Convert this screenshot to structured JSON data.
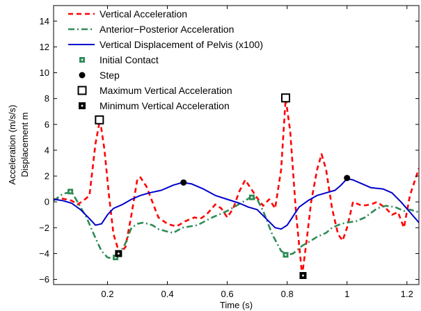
{
  "chart_data": {
    "type": "line",
    "xlabel": "Time (s)",
    "ylabel_lines": [
      "Acceleration (m/s/s)",
      "Displacement m"
    ],
    "xlim": [
      0.02,
      1.24
    ],
    "ylim": [
      -6.4,
      15.2
    ],
    "x_ticks": [
      0.2,
      0.4,
      0.6,
      0.8,
      1,
      1.2
    ],
    "x_tick_labels": [
      "0.2",
      "0.4",
      "0.6",
      "0.8",
      "1",
      "1.2"
    ],
    "y_ticks": [
      -6,
      -4,
      -2,
      0,
      2,
      4,
      6,
      8,
      10,
      12,
      14
    ],
    "y_tick_labels": [
      "−6",
      "−4",
      "−2",
      "0",
      "2",
      "4",
      "6",
      "8",
      "10",
      "12",
      "14"
    ],
    "grid": false,
    "legend_position": "top-left",
    "series": [
      {
        "name": "Vertical Acceleration",
        "color": "#ff0000",
        "style": "dashed",
        "points": [
          [
            0.02,
            0.2
          ],
          [
            0.05,
            0.25
          ],
          [
            0.08,
            0.1
          ],
          [
            0.1,
            -0.2
          ],
          [
            0.12,
            0.1
          ],
          [
            0.14,
            0.5
          ],
          [
            0.16,
            4.5
          ],
          [
            0.175,
            6.4
          ],
          [
            0.19,
            4.0
          ],
          [
            0.205,
            0.5
          ],
          [
            0.22,
            -2.5
          ],
          [
            0.24,
            -4.0
          ],
          [
            0.26,
            -3.5
          ],
          [
            0.28,
            -1.0
          ],
          [
            0.3,
            1.8
          ],
          [
            0.31,
            1.9
          ],
          [
            0.33,
            1.2
          ],
          [
            0.35,
            0.0
          ],
          [
            0.37,
            -1.2
          ],
          [
            0.4,
            -1.7
          ],
          [
            0.43,
            -1.9
          ],
          [
            0.46,
            -1.5
          ],
          [
            0.49,
            -1.2
          ],
          [
            0.51,
            -1.3
          ],
          [
            0.53,
            -1.0
          ],
          [
            0.56,
            -0.2
          ],
          [
            0.58,
            -0.5
          ],
          [
            0.6,
            -1.2
          ],
          [
            0.62,
            -0.5
          ],
          [
            0.64,
            0.8
          ],
          [
            0.66,
            1.7
          ],
          [
            0.68,
            1.0
          ],
          [
            0.7,
            0.3
          ],
          [
            0.72,
            -0.3
          ],
          [
            0.74,
            0.2
          ],
          [
            0.76,
            -0.5
          ],
          [
            0.78,
            2.5
          ],
          [
            0.795,
            8.0
          ],
          [
            0.81,
            5.5
          ],
          [
            0.83,
            -1.0
          ],
          [
            0.85,
            -5.7
          ],
          [
            0.865,
            -3.0
          ],
          [
            0.88,
            0.0
          ],
          [
            0.9,
            2.5
          ],
          [
            0.915,
            3.7
          ],
          [
            0.93,
            2.5
          ],
          [
            0.95,
            -0.5
          ],
          [
            0.97,
            -2.5
          ],
          [
            0.985,
            -3.0
          ],
          [
            1.0,
            -2.0
          ],
          [
            1.02,
            0.0
          ],
          [
            1.05,
            -0.3
          ],
          [
            1.08,
            -0.2
          ],
          [
            1.1,
            0.0
          ],
          [
            1.13,
            -0.5
          ],
          [
            1.15,
            -1.0
          ],
          [
            1.17,
            -0.8
          ],
          [
            1.19,
            -2.0
          ],
          [
            1.21,
            0.5
          ],
          [
            1.24,
            2.6
          ]
        ]
      },
      {
        "name": "Anterior−Posterior Acceleration",
        "color": "#2e8b57",
        "style": "dashdot",
        "points": [
          [
            0.02,
            0.1
          ],
          [
            0.05,
            0.6
          ],
          [
            0.08,
            0.8
          ],
          [
            0.1,
            0.0
          ],
          [
            0.13,
            -1.2
          ],
          [
            0.16,
            -2.8
          ],
          [
            0.18,
            -3.8
          ],
          [
            0.2,
            -4.3
          ],
          [
            0.22,
            -4.4
          ],
          [
            0.24,
            -4.0
          ],
          [
            0.26,
            -3.2
          ],
          [
            0.28,
            -2.0
          ],
          [
            0.3,
            -1.7
          ],
          [
            0.32,
            -1.6
          ],
          [
            0.35,
            -1.8
          ],
          [
            0.37,
            -2.1
          ],
          [
            0.4,
            -2.3
          ],
          [
            0.42,
            -2.4
          ],
          [
            0.45,
            -2.0
          ],
          [
            0.5,
            -1.8
          ],
          [
            0.55,
            -1.2
          ],
          [
            0.6,
            -0.7
          ],
          [
            0.63,
            -0.3
          ],
          [
            0.66,
            0.1
          ],
          [
            0.68,
            0.4
          ],
          [
            0.7,
            0.2
          ],
          [
            0.72,
            -0.7
          ],
          [
            0.75,
            -2.5
          ],
          [
            0.78,
            -3.8
          ],
          [
            0.8,
            -4.1
          ],
          [
            0.82,
            -4.0
          ],
          [
            0.85,
            -3.4
          ],
          [
            0.88,
            -3.0
          ],
          [
            0.9,
            -2.7
          ],
          [
            0.93,
            -2.4
          ],
          [
            0.95,
            -2.0
          ],
          [
            0.98,
            -1.7
          ],
          [
            1.0,
            -1.6
          ],
          [
            1.03,
            -1.5
          ],
          [
            1.06,
            -1.2
          ],
          [
            1.1,
            -0.5
          ],
          [
            1.13,
            -0.3
          ],
          [
            1.16,
            -0.4
          ],
          [
            1.19,
            -0.7
          ],
          [
            1.21,
            -0.6
          ],
          [
            1.24,
            -0.8
          ]
        ]
      },
      {
        "name": "Vertical Displacement of Pelvis (x100)",
        "color": "#0000cd",
        "style": "solid",
        "points": [
          [
            0.02,
            0.2
          ],
          [
            0.05,
            0.1
          ],
          [
            0.08,
            -0.1
          ],
          [
            0.11,
            -0.6
          ],
          [
            0.14,
            -1.3
          ],
          [
            0.16,
            -1.8
          ],
          [
            0.18,
            -1.7
          ],
          [
            0.2,
            -1.0
          ],
          [
            0.22,
            -0.5
          ],
          [
            0.25,
            -0.2
          ],
          [
            0.28,
            0.2
          ],
          [
            0.31,
            0.5
          ],
          [
            0.34,
            0.7
          ],
          [
            0.38,
            0.9
          ],
          [
            0.42,
            1.3
          ],
          [
            0.45,
            1.5
          ],
          [
            0.48,
            1.4
          ],
          [
            0.52,
            1.0
          ],
          [
            0.56,
            0.5
          ],
          [
            0.6,
            0.2
          ],
          [
            0.64,
            -0.1
          ],
          [
            0.67,
            -0.4
          ],
          [
            0.7,
            -0.6
          ],
          [
            0.73,
            -1.3
          ],
          [
            0.76,
            -2.0
          ],
          [
            0.78,
            -2.1
          ],
          [
            0.8,
            -1.8
          ],
          [
            0.82,
            -1.1
          ],
          [
            0.84,
            -0.4
          ],
          [
            0.87,
            0.1
          ],
          [
            0.9,
            0.5
          ],
          [
            0.93,
            0.7
          ],
          [
            0.96,
            0.9
          ],
          [
            0.98,
            1.3
          ],
          [
            1.0,
            1.8
          ],
          [
            1.02,
            1.7
          ],
          [
            1.05,
            1.4
          ],
          [
            1.08,
            1.1
          ],
          [
            1.12,
            1.0
          ],
          [
            1.15,
            0.7
          ],
          [
            1.18,
            0.0
          ],
          [
            1.21,
            -0.8
          ],
          [
            1.24,
            -1.6
          ]
        ]
      }
    ],
    "markers": [
      {
        "name": "Initial Contact",
        "shape": "small-square-dot",
        "color": "#2e8b57",
        "points": [
          [
            0.076,
            0.8
          ],
          [
            0.227,
            -4.3
          ],
          [
            0.682,
            0.35
          ],
          [
            0.795,
            -4.1
          ]
        ]
      },
      {
        "name": "Step",
        "shape": "dot",
        "color": "#000000",
        "points": [
          [
            0.454,
            1.5
          ],
          [
            1.0,
            1.85
          ]
        ]
      },
      {
        "name": "Maximum Vertical Acceleration",
        "shape": "open-square",
        "color": "#000000",
        "points": [
          [
            0.173,
            6.35
          ],
          [
            0.795,
            8.05
          ]
        ]
      },
      {
        "name": "Minimum Vertical Acceleration",
        "shape": "filled-square-dot",
        "color": "#000000",
        "points": [
          [
            0.237,
            -4.0
          ],
          [
            0.853,
            -5.7
          ]
        ]
      }
    ]
  }
}
